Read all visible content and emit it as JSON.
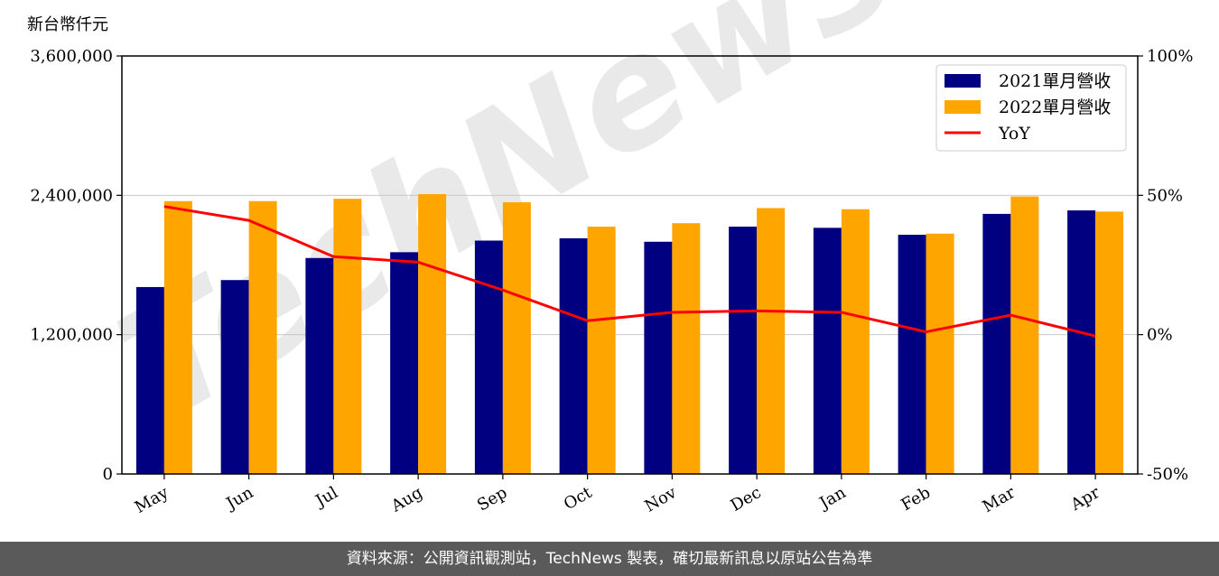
{
  "footer": {
    "source_text": "資料來源：公開資訊觀測站，TechNews 製表，確切最新訊息以原站公告為準"
  },
  "watermark": {
    "text": "TechNews"
  },
  "colors": {
    "series_2021": "#000080",
    "series_2022": "#ffa500",
    "yoy": "#ff0000",
    "grid": "#c8c8c8"
  },
  "chart_data": {
    "type": "bar",
    "categories": [
      "May",
      "Jun",
      "Jul",
      "Aug",
      "Sep",
      "Oct",
      "Nov",
      "Dec",
      "Jan",
      "Feb",
      "Mar",
      "Apr"
    ],
    "unit_label": "新台幣仟元",
    "y_left": {
      "ylim": [
        0,
        3600000
      ],
      "ticks": [
        "0",
        "1,200,000",
        "2,400,000",
        "3,600,000"
      ],
      "tick_values": [
        0,
        1200000,
        2400000,
        3600000
      ]
    },
    "y_right": {
      "ylim": [
        -50,
        100
      ],
      "ticks": [
        "-50%",
        "0%",
        "50%",
        "100%"
      ],
      "tick_values": [
        -50,
        0,
        50,
        100
      ]
    },
    "series": [
      {
        "name": "2021單月營收",
        "type": "bar",
        "axis": "left",
        "values": [
          1610000,
          1670000,
          1860000,
          1910000,
          2010000,
          2030000,
          2000000,
          2130000,
          2120000,
          2060000,
          2240000,
          2270000
        ]
      },
      {
        "name": "2022單月營收",
        "type": "bar",
        "axis": "left",
        "values": [
          2350000,
          2350000,
          2370000,
          2410000,
          2340000,
          2130000,
          2160000,
          2290000,
          2280000,
          2070000,
          2390000,
          2260000
        ]
      },
      {
        "name": "YoY",
        "type": "line",
        "axis": "right",
        "values": [
          46,
          41,
          28,
          26,
          16,
          5,
          8,
          8.5,
          8,
          1,
          7,
          -0.5
        ]
      }
    ],
    "grid": "horizontal",
    "legend": "top-right"
  }
}
